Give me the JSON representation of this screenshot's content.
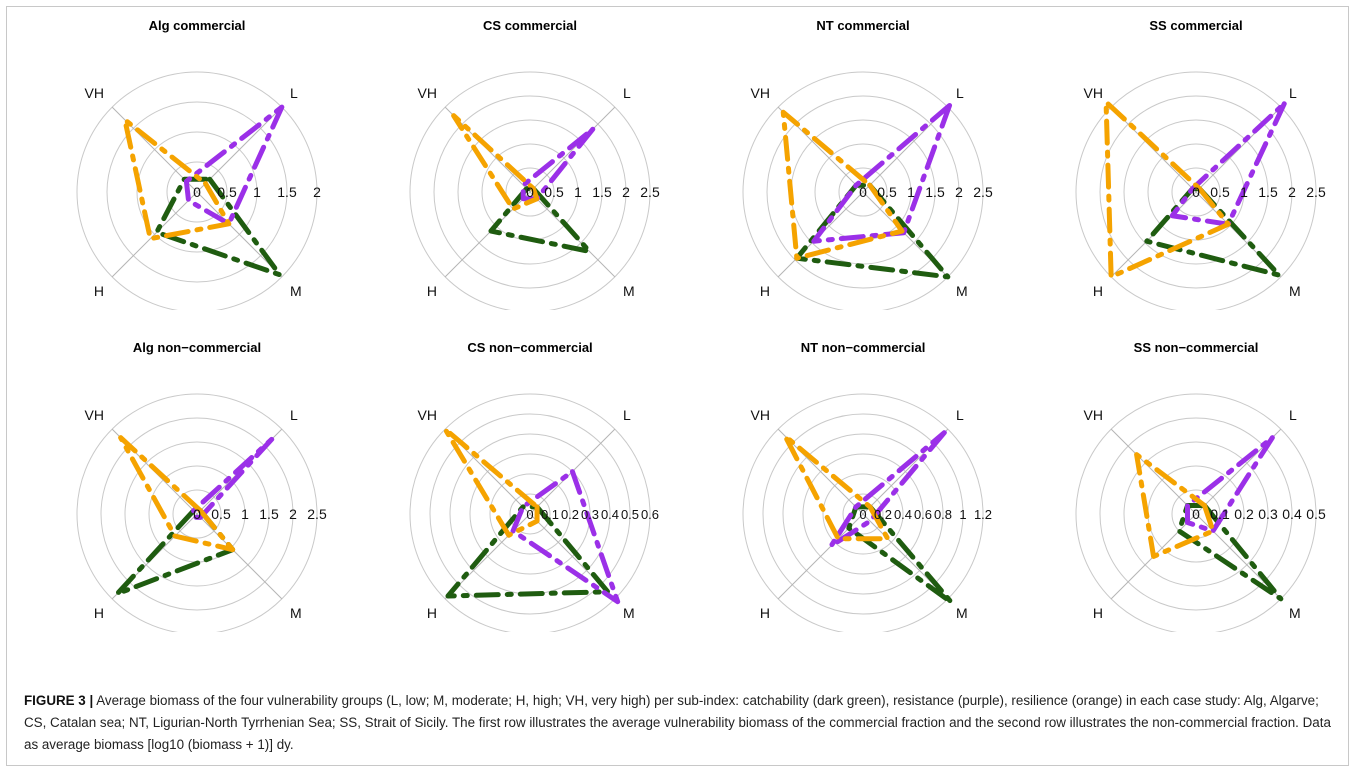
{
  "figure": {
    "caption_label": "FIGURE 3 |",
    "caption_text": " Average biomass of the four vulnerability groups (L, low; M, moderate; H, high; VH, very high) per sub-index: catchability (dark green), resistance (purple), resilience (orange) in each case study: Alg, Algarve; CS, Catalan sea; NT, Ligurian-North Tyrrhenian Sea; SS, Strait of Sicily. The first row illustrates the average vulnerability biomass of the commercial fraction and the second row illustrates the non-commercial fraction. Data as average biomass [log10 (biomass + 1)] dy."
  },
  "colors": {
    "catchability": "#1f5c10",
    "resistance": "#9b30e8",
    "resilience": "#f5a300",
    "ring": "#c9c9c9",
    "axis": "#b5b5b5"
  },
  "chart_data": [
    {
      "type": "radar",
      "title": "Alg commercial",
      "axes": [
        "L",
        "M",
        "H",
        "VH"
      ],
      "max": 2,
      "ticks": [
        "0",
        "0.5",
        "1",
        "1.5",
        "2"
      ],
      "series": [
        {
          "key": "catchability",
          "values": [
            0.3,
            1.95,
            0.95,
            0.3
          ]
        },
        {
          "key": "resistance",
          "values": [
            2.0,
            0.75,
            0.2,
            0.25
          ]
        },
        {
          "key": "resilience",
          "values": [
            0.2,
            0.75,
            1.1,
            1.7
          ]
        }
      ]
    },
    {
      "type": "radar",
      "title": "CS commercial",
      "axes": [
        "L",
        "M",
        "H",
        "VH"
      ],
      "max": 2.5,
      "ticks": [
        "0",
        "0.5",
        "1",
        "1.5",
        "2",
        "2.5"
      ],
      "series": [
        {
          "key": "catchability",
          "values": [
            0.1,
            1.75,
            1.15,
            0.1
          ]
        },
        {
          "key": "resistance",
          "values": [
            1.85,
            0.2,
            0.2,
            0.2
          ]
        },
        {
          "key": "resilience",
          "values": [
            0.1,
            0.2,
            0.5,
            2.25
          ]
        }
      ]
    },
    {
      "type": "radar",
      "title": "NT commercial",
      "axes": [
        "L",
        "M",
        "H",
        "VH"
      ],
      "max": 2.5,
      "ticks": [
        "0",
        "0.5",
        "1",
        "1.5",
        "2",
        "2.5"
      ],
      "series": [
        {
          "key": "catchability",
          "values": [
            0.2,
            2.5,
            1.95,
            0.2
          ]
        },
        {
          "key": "resistance",
          "values": [
            2.55,
            1.2,
            1.45,
            0.2
          ]
        },
        {
          "key": "resilience",
          "values": [
            0.2,
            1.15,
            1.95,
            2.35
          ]
        }
      ]
    },
    {
      "type": "radar",
      "title": "SS commercial",
      "axes": [
        "L",
        "M",
        "H",
        "VH"
      ],
      "max": 2.5,
      "ticks": [
        "0",
        "0.5",
        "1",
        "1.5",
        "2",
        "2.5"
      ],
      "series": [
        {
          "key": "catchability",
          "values": [
            0.1,
            2.45,
            1.45,
            0.1
          ]
        },
        {
          "key": "resistance",
          "values": [
            2.6,
            0.95,
            0.7,
            0.1
          ]
        },
        {
          "key": "resilience",
          "values": [
            0.1,
            0.95,
            2.5,
            2.65
          ]
        }
      ]
    },
    {
      "type": "radar",
      "title": "Alg non−commercial",
      "axes": [
        "L",
        "M",
        "H",
        "VH"
      ],
      "max": 2.5,
      "ticks": [
        "0",
        "0.5",
        "1",
        "1.5",
        "2",
        "2.5"
      ],
      "series": [
        {
          "key": "catchability",
          "values": [
            0.1,
            1.05,
            2.35,
            0.1
          ]
        },
        {
          "key": "resistance",
          "values": [
            2.2,
            0.1,
            0.1,
            0.1
          ]
        },
        {
          "key": "resilience",
          "values": [
            0.1,
            1.05,
            0.65,
            2.25
          ]
        }
      ]
    },
    {
      "type": "radar",
      "title": "CS non−commercial",
      "axes": [
        "L",
        "M",
        "H",
        "VH"
      ],
      "max": 0.6,
      "ticks": [
        "0",
        "0.1",
        "0.2",
        "0.3",
        "0.4",
        "0.5",
        "0.6"
      ],
      "series": [
        {
          "key": "catchability",
          "values": [
            0.05,
            0.55,
            0.58,
            0.05
          ]
        },
        {
          "key": "resistance",
          "values": [
            0.3,
            0.62,
            0.12,
            0.05
          ]
        },
        {
          "key": "resilience",
          "values": [
            0.05,
            0.05,
            0.15,
            0.6
          ]
        }
      ]
    },
    {
      "type": "radar",
      "title": "NT non−commercial",
      "axes": [
        "L",
        "M",
        "H",
        "VH"
      ],
      "max": 1.2,
      "ticks": [
        "0",
        "0.2",
        "0.4",
        "0.6",
        "0.8",
        "1",
        "1.2"
      ],
      "series": [
        {
          "key": "catchability",
          "values": [
            0.1,
            1.25,
            0.2,
            0.1
          ]
        },
        {
          "key": "resistance",
          "values": [
            1.15,
            0.1,
            0.45,
            0.1
          ]
        },
        {
          "key": "resilience",
          "values": [
            0.1,
            0.35,
            0.35,
            1.1
          ]
        }
      ]
    },
    {
      "type": "radar",
      "title": "SS non−commercial",
      "axes": [
        "L",
        "M",
        "H",
        "VH"
      ],
      "max": 0.5,
      "ticks": [
        "0",
        "0.1",
        "0.2",
        "0.3",
        "0.4",
        "0.5"
      ],
      "series": [
        {
          "key": "catchability",
          "values": [
            0.05,
            0.5,
            0.1,
            0.05
          ]
        },
        {
          "key": "resistance",
          "values": [
            0.45,
            0.1,
            0.05,
            0.05
          ]
        },
        {
          "key": "resilience",
          "values": [
            0.05,
            0.1,
            0.25,
            0.35
          ]
        }
      ]
    }
  ]
}
